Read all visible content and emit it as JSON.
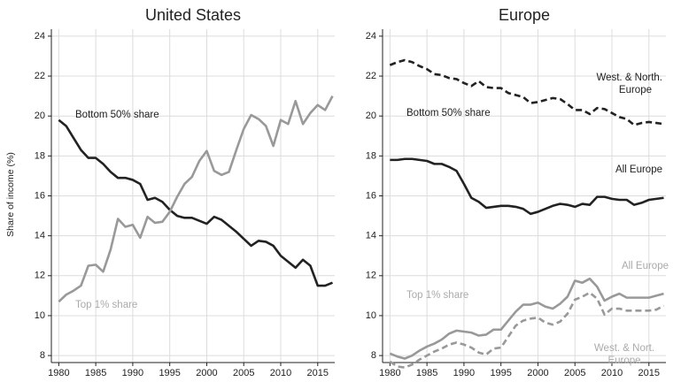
{
  "chart_data": [
    {
      "type": "line",
      "title": "United States",
      "ylabel": "Share of income (%)",
      "x": [
        1980,
        1981,
        1982,
        1983,
        1984,
        1985,
        1986,
        1987,
        1988,
        1989,
        1990,
        1991,
        1992,
        1993,
        1994,
        1995,
        1996,
        1997,
        1998,
        1999,
        2000,
        2001,
        2002,
        2003,
        2004,
        2005,
        2006,
        2007,
        2008,
        2009,
        2010,
        2011,
        2012,
        2013,
        2014,
        2015,
        2016,
        2017
      ],
      "xlim": [
        1979,
        2017.3
      ],
      "xticks": [
        1980,
        1985,
        1990,
        1995,
        2000,
        2005,
        2010,
        2015
      ],
      "ylim": [
        7.65,
        24.35
      ],
      "yticks": [
        8,
        10,
        12,
        14,
        16,
        18,
        20,
        22,
        24
      ],
      "grid": true,
      "series": [
        {
          "color": "#222222",
          "dash": false,
          "values": [
            19.8,
            19.5,
            18.9,
            18.3,
            17.9,
            17.9,
            17.6,
            17.2,
            16.9,
            16.9,
            16.8,
            16.6,
            15.8,
            15.9,
            15.7,
            15.3,
            15.0,
            14.9,
            14.9,
            14.75,
            14.6,
            14.95,
            14.8,
            14.5,
            14.2,
            13.85,
            13.5,
            13.75,
            13.7,
            13.5,
            13.0,
            12.7,
            12.4,
            12.8,
            12.5,
            11.5,
            11.5,
            11.65
          ]
        },
        {
          "color": "#999999",
          "dash": false,
          "values": [
            10.7,
            11.05,
            11.25,
            11.5,
            12.5,
            12.55,
            12.2,
            13.3,
            14.85,
            14.45,
            14.55,
            13.9,
            14.95,
            14.65,
            14.7,
            15.2,
            15.95,
            16.6,
            16.95,
            17.75,
            18.25,
            17.25,
            17.05,
            17.2,
            18.3,
            19.35,
            20.05,
            19.85,
            19.5,
            18.5,
            19.8,
            19.6,
            20.75,
            19.6,
            20.15,
            20.55,
            20.3,
            21.0
          ]
        }
      ],
      "annotations": [
        {
          "text": [
            "Bottom 50% share"
          ],
          "color": "#222222"
        },
        {
          "text": [
            "Top 1% share"
          ],
          "color": "#aaaaaa"
        }
      ]
    },
    {
      "type": "line",
      "title": "Europe",
      "x": [
        1980,
        1981,
        1982,
        1983,
        1984,
        1985,
        1986,
        1987,
        1988,
        1989,
        1990,
        1991,
        1992,
        1993,
        1994,
        1995,
        1996,
        1997,
        1998,
        1999,
        2000,
        2001,
        2002,
        2003,
        2004,
        2005,
        2006,
        2007,
        2008,
        2009,
        2010,
        2011,
        2012,
        2013,
        2014,
        2015,
        2016,
        2017
      ],
      "xlim": [
        1979,
        2017.3
      ],
      "xticks": [
        1980,
        1985,
        1990,
        1995,
        2000,
        2005,
        2010,
        2015
      ],
      "ylim": [
        7.65,
        24.35
      ],
      "yticks": [
        8,
        10,
        12,
        14,
        16,
        18,
        20,
        22,
        24
      ],
      "grid": true,
      "series": [
        {
          "color": "#222222",
          "dash": true,
          "values": [
            22.55,
            22.7,
            22.8,
            22.7,
            22.5,
            22.35,
            22.1,
            22.05,
            21.9,
            21.85,
            21.65,
            21.5,
            21.75,
            21.45,
            21.4,
            21.4,
            21.15,
            21.05,
            20.95,
            20.65,
            20.7,
            20.8,
            20.9,
            20.85,
            20.6,
            20.3,
            20.3,
            20.1,
            20.4,
            20.35,
            20.15,
            19.95,
            19.85,
            19.55,
            19.65,
            19.7,
            19.65,
            19.6
          ]
        },
        {
          "color": "#222222",
          "dash": false,
          "values": [
            17.8,
            17.8,
            17.85,
            17.85,
            17.8,
            17.75,
            17.6,
            17.6,
            17.45,
            17.25,
            16.6,
            15.9,
            15.7,
            15.4,
            15.45,
            15.5,
            15.5,
            15.45,
            15.35,
            15.1,
            15.2,
            15.35,
            15.5,
            15.6,
            15.55,
            15.45,
            15.6,
            15.55,
            15.95,
            15.95,
            15.85,
            15.8,
            15.8,
            15.55,
            15.65,
            15.8,
            15.85,
            15.9
          ]
        },
        {
          "color": "#999999",
          "dash": false,
          "values": [
            8.1,
            7.95,
            7.85,
            8.0,
            8.25,
            8.45,
            8.6,
            8.8,
            9.1,
            9.25,
            9.2,
            9.15,
            9.0,
            9.05,
            9.3,
            9.3,
            9.75,
            10.2,
            10.55,
            10.55,
            10.65,
            10.45,
            10.35,
            10.6,
            10.95,
            11.75,
            11.65,
            11.85,
            11.45,
            10.75,
            10.95,
            11.1,
            10.9,
            10.9,
            10.9,
            10.9,
            11.0,
            11.1
          ]
        },
        {
          "color": "#999999",
          "dash": true,
          "values": [
            7.7,
            7.45,
            7.4,
            7.55,
            7.8,
            8.0,
            8.2,
            8.35,
            8.55,
            8.65,
            8.55,
            8.4,
            8.15,
            8.05,
            8.35,
            8.4,
            8.95,
            9.5,
            9.75,
            9.85,
            9.9,
            9.65,
            9.55,
            9.7,
            10.1,
            10.8,
            10.95,
            11.15,
            10.85,
            10.05,
            10.35,
            10.35,
            10.25,
            10.25,
            10.25,
            10.25,
            10.3,
            10.5
          ]
        }
      ],
      "annotations": [
        {
          "text": [
            "West. & North.",
            "Europe"
          ],
          "color": "#222222"
        },
        {
          "text": [
            "Bottom 50% share"
          ],
          "color": "#222222"
        },
        {
          "text": [
            "All Europe"
          ],
          "color": "#222222"
        },
        {
          "text": [
            "All Europe"
          ],
          "color": "#aaaaaa"
        },
        {
          "text": [
            "Top 1% share"
          ],
          "color": "#aaaaaa"
        },
        {
          "text": [
            "West. & Nort.",
            "Europe"
          ],
          "color": "#aaaaaa"
        }
      ]
    }
  ]
}
